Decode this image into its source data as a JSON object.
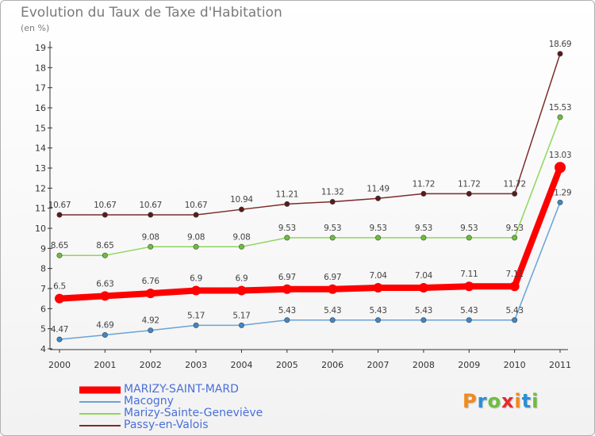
{
  "header": {
    "title": "Evolution du Taux de Taxe d'Habitation",
    "unit": "(en %)"
  },
  "logo": {
    "text": "Proxiti",
    "letter_colors": [
      "#f18a1c",
      "#2a8fd6",
      "#6cbf3a",
      "#e32b2b",
      "#f18a1c",
      "#2a8fd6",
      "#6cbf3a"
    ]
  },
  "chart_data": {
    "type": "line",
    "title": "Evolution du Taux de Taxe d'Habitation",
    "ylabel": "(en %)",
    "xlabel": "",
    "x": [
      "2000",
      "2001",
      "2002",
      "2003",
      "2004",
      "2005",
      "2006",
      "2007",
      "2008",
      "2009",
      "2010",
      "2011"
    ],
    "ylim": [
      4,
      19
    ],
    "yticks": [
      "4",
      "5",
      "6",
      "7",
      "8",
      "9",
      "10",
      "11",
      "12",
      "13",
      "14",
      "15",
      "16",
      "17",
      "18",
      "19"
    ],
    "grid": false,
    "legend_position": "bottom-left",
    "series": [
      {
        "name": "Passy-en-Valois",
        "color": "#7d2b2b",
        "marker_color": "#5a1a1a",
        "values": [
          10.67,
          10.67,
          10.67,
          10.67,
          10.94,
          11.21,
          11.32,
          11.49,
          11.72,
          11.72,
          11.72,
          18.69
        ],
        "labels": [
          "10.67",
          "10.67",
          "10.67",
          "10.67",
          "10.94",
          "11.21",
          "11.32",
          "11.49",
          "11.72",
          "11.72",
          "11.72",
          "18.69"
        ]
      },
      {
        "name": "Marizy-Sainte-Geneviève",
        "color": "#8fd65a",
        "marker_color": "#6cbf3a",
        "values": [
          8.65,
          8.65,
          9.08,
          9.08,
          9.08,
          9.53,
          9.53,
          9.53,
          9.53,
          9.53,
          9.53,
          15.53
        ],
        "labels": [
          "8.65",
          "8.65",
          "9.08",
          "9.08",
          "9.08",
          "9.53",
          "9.53",
          "9.53",
          "9.53",
          "9.53",
          "9.53",
          "15.53"
        ]
      },
      {
        "name": "Macogny",
        "color": "#6aa3d6",
        "marker_color": "#3f86c8",
        "values": [
          4.47,
          4.69,
          4.92,
          5.17,
          5.17,
          5.43,
          5.43,
          5.43,
          5.43,
          5.43,
          5.43,
          11.29
        ],
        "labels": [
          "4.47",
          "4.69",
          "4.92",
          "5.17",
          "5.17",
          "5.43",
          "5.43",
          "5.43",
          "5.43",
          "5.43",
          "5.43",
          "11.29"
        ]
      },
      {
        "name": "MARIZY-SAINT-MARD",
        "color": "#ff0000",
        "marker_color": "#ff0000",
        "values": [
          6.5,
          6.63,
          6.76,
          6.9,
          6.9,
          6.97,
          6.97,
          7.04,
          7.04,
          7.11,
          7.11,
          13.03
        ],
        "labels": [
          "6.5",
          "6.63",
          "6.76",
          "6.9",
          "6.9",
          "6.97",
          "6.97",
          "7.04",
          "7.04",
          "7.11",
          "7.11",
          "13.03"
        ]
      }
    ],
    "legend_order": [
      "MARIZY-SAINT-MARD",
      "Macogny",
      "Marizy-Sainte-Geneviève",
      "Passy-en-Valois"
    ]
  }
}
